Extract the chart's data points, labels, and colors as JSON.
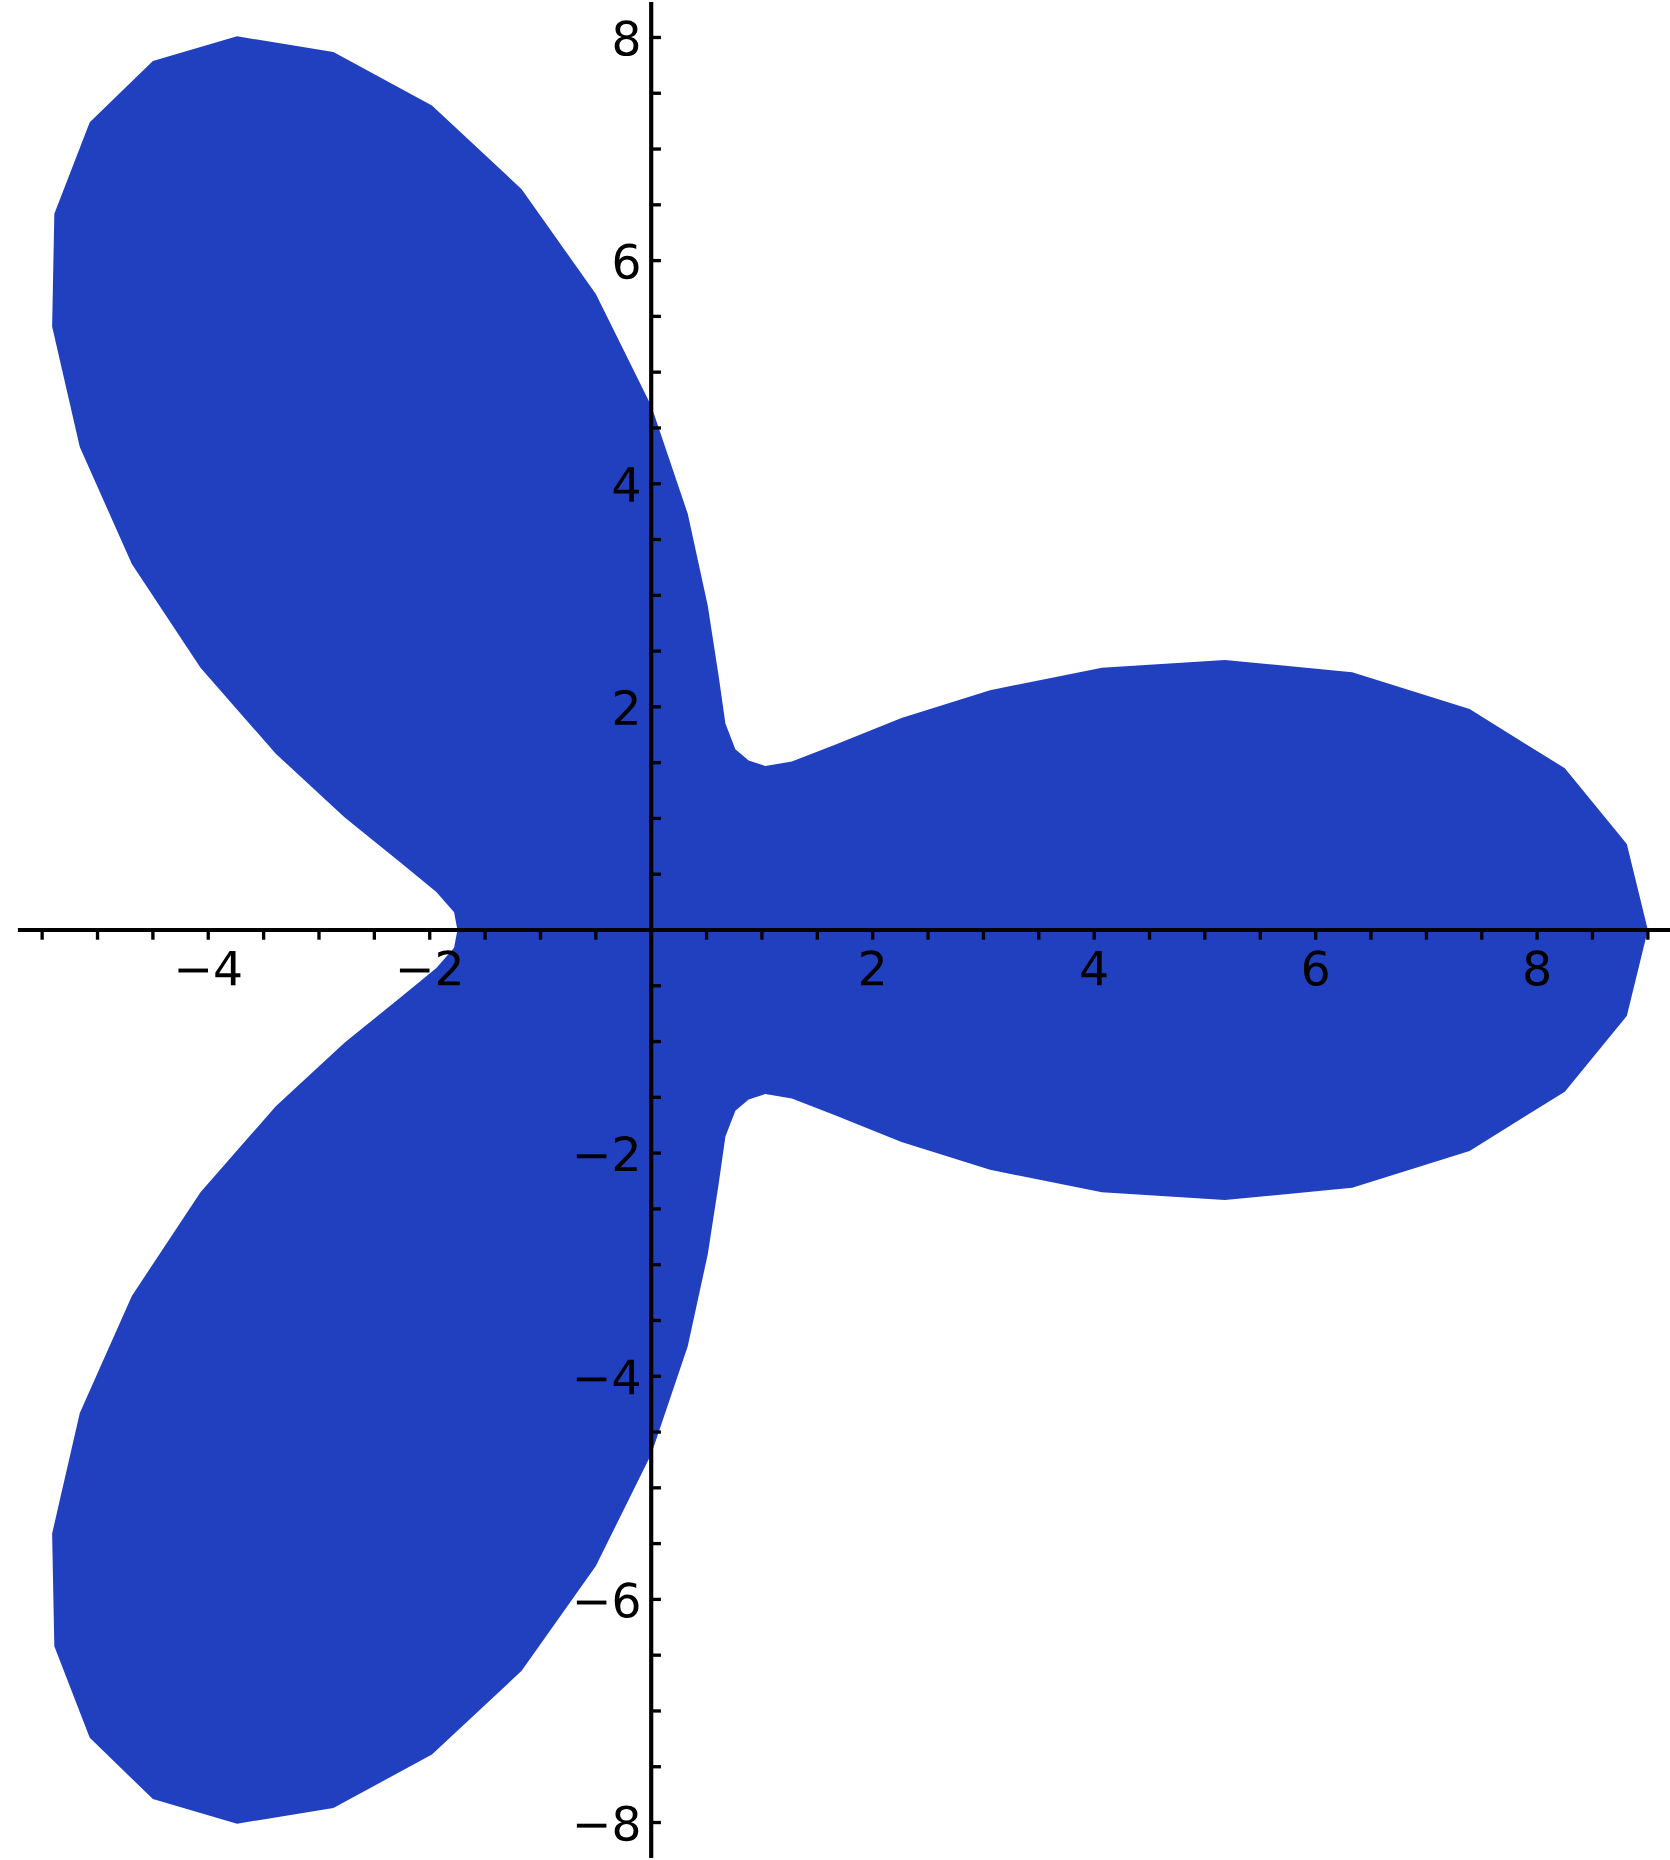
{
  "chart_data": {
    "type": "area",
    "series": [
      {
        "color": "#2140bf",
        "x": [
          9,
          8.81,
          8.25,
          7.39,
          6.33,
          5.18,
          4.07,
          3.06,
          2.26,
          1.66,
          1.27,
          1.03,
          0.88,
          0.76,
          0.67,
          0.61,
          0.51,
          0.33,
          0,
          -0.5,
          -1.17,
          -1.98,
          -2.87,
          -3.74,
          -4.5,
          -5.07,
          -5.39,
          -5.41,
          -5.16,
          -4.69,
          -4.07,
          -3.39,
          -2.77,
          -2.27,
          -1.94,
          -1.78,
          -1.75,
          -1.78,
          -1.94,
          -2.27,
          -2.77,
          -3.39,
          -4.07,
          -4.69,
          -5.16,
          -5.41,
          -5.39,
          -5.07,
          -4.5,
          -3.74,
          -2.87,
          -1.98,
          -1.17,
          -0.5,
          0,
          0.33,
          0.51,
          0.61,
          0.67,
          0.76,
          0.88,
          1.03,
          1.27,
          1.66,
          2.26,
          3.06,
          4.07,
          5.18,
          6.33,
          7.39,
          8.25,
          8.81
        ],
        "values": [
          0,
          0.77,
          1.45,
          1.98,
          2.31,
          2.42,
          2.35,
          2.15,
          1.9,
          1.66,
          1.51,
          1.47,
          1.52,
          1.62,
          1.85,
          2.27,
          2.91,
          3.73,
          4.7,
          5.7,
          6.64,
          7.39,
          7.87,
          8.01,
          7.79,
          7.24,
          6.42,
          5.41,
          4.33,
          3.28,
          2.35,
          1.58,
          1.01,
          0.61,
          0.34,
          0.16,
          0,
          -0.16,
          -0.34,
          -0.61,
          -1.01,
          -1.58,
          -2.35,
          -3.28,
          -4.33,
          -5.41,
          -6.42,
          -7.24,
          -7.79,
          -8.01,
          -7.87,
          -7.39,
          -6.64,
          -5.7,
          -4.7,
          -3.73,
          -2.91,
          -2.27,
          -1.85,
          -1.62,
          -1.52,
          -1.47,
          -1.51,
          -1.66,
          -1.9,
          -2.15,
          -2.35,
          -2.42,
          -2.31,
          -1.98,
          -1.45,
          -0.77
        ]
      }
    ],
    "xlim": [
      -5.7,
      9.2
    ],
    "ylim": [
      -8.3,
      8.3
    ],
    "xticks": [
      {
        "value": -5.5,
        "label": null
      },
      {
        "value": -5,
        "label": null
      },
      {
        "value": -4.5,
        "label": null
      },
      -4,
      {
        "value": -3.5,
        "label": null
      },
      {
        "value": -3,
        "label": null
      },
      {
        "value": -2.5,
        "label": null
      },
      -2,
      {
        "value": -1.5,
        "label": null
      },
      {
        "value": -1,
        "label": null
      },
      {
        "value": -0.5,
        "label": null
      },
      {
        "value": 0.5,
        "label": null
      },
      {
        "value": 1,
        "label": null
      },
      {
        "value": 1.5,
        "label": null
      },
      2,
      {
        "value": 2.5,
        "label": null
      },
      {
        "value": 3,
        "label": null
      },
      {
        "value": 3.5,
        "label": null
      },
      4,
      {
        "value": 4.5,
        "label": null
      },
      {
        "value": 5,
        "label": null
      },
      {
        "value": 5.5,
        "label": null
      },
      6,
      {
        "value": 6.5,
        "label": null
      },
      {
        "value": 7,
        "label": null
      },
      {
        "value": 7.5,
        "label": null
      },
      8,
      {
        "value": 8.5,
        "label": null
      },
      {
        "value": 9,
        "label": null
      }
    ],
    "yticks": [
      -8,
      {
        "value": -7.5,
        "label": null
      },
      {
        "value": -7,
        "label": null
      },
      {
        "value": -6.5,
        "label": null
      },
      -6,
      {
        "value": -5.5,
        "label": null
      },
      {
        "value": -5,
        "label": null
      },
      {
        "value": -4.5,
        "label": null
      },
      -4,
      {
        "value": -3.5,
        "label": null
      },
      {
        "value": -3,
        "label": null
      },
      {
        "value": -2.5,
        "label": null
      },
      -2,
      {
        "value": -1.5,
        "label": null
      },
      {
        "value": -1,
        "label": null
      },
      {
        "value": -0.5,
        "label": null
      },
      {
        "value": 0.5,
        "label": null
      },
      {
        "value": 1,
        "label": null
      },
      {
        "value": 1.5,
        "label": null
      },
      2,
      {
        "value": 2.5,
        "label": null
      },
      {
        "value": 3,
        "label": null
      },
      {
        "value": 3.5,
        "label": null
      },
      4,
      {
        "value": 4.5,
        "label": null
      },
      {
        "value": 5,
        "label": null
      },
      {
        "value": 5.5,
        "label": null
      },
      6,
      {
        "value": 6.5,
        "label": null
      },
      {
        "value": 7,
        "label": null
      },
      {
        "value": 7.5,
        "label": null
      },
      8
    ]
  }
}
